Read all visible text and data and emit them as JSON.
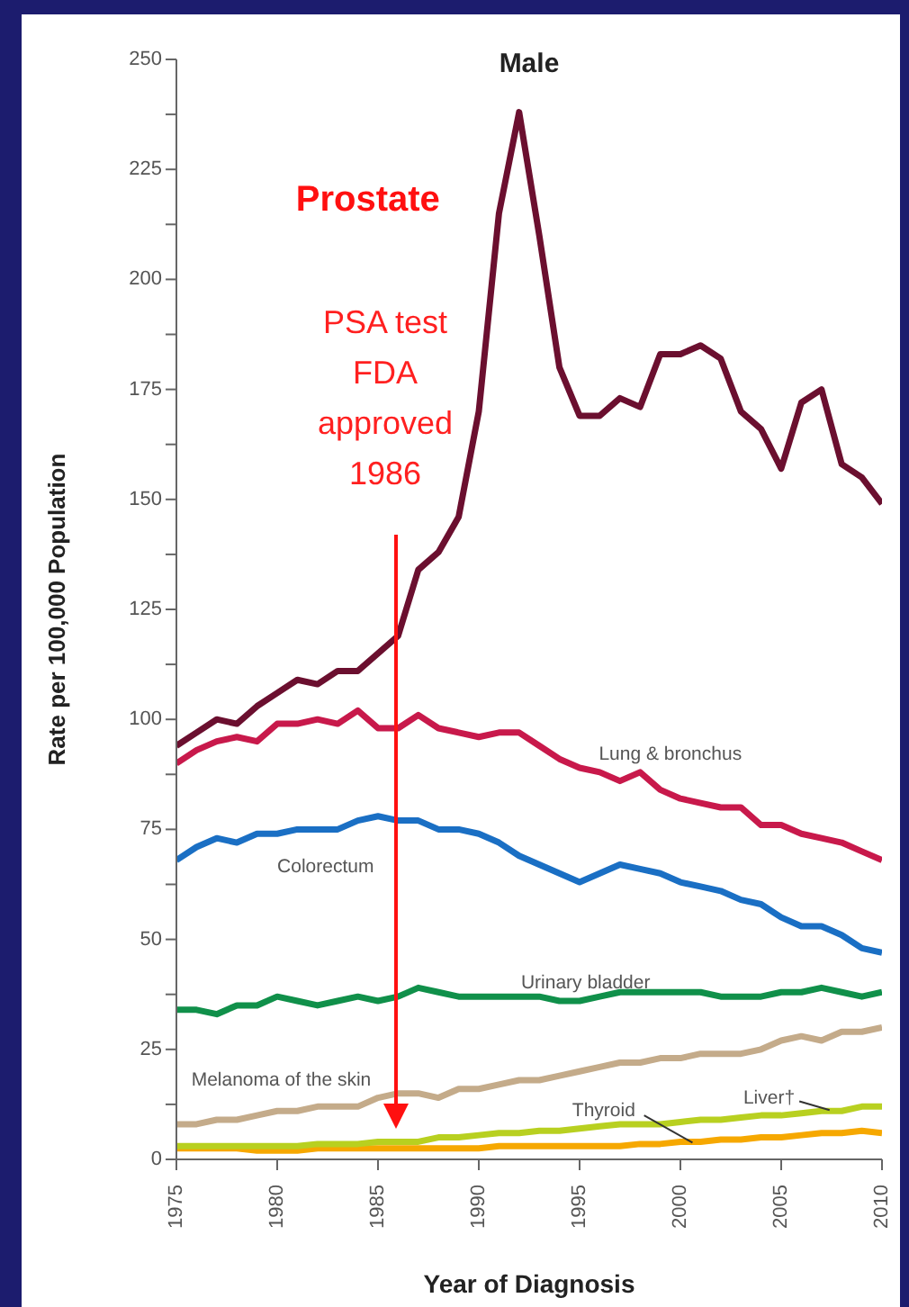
{
  "chart_data": {
    "type": "line",
    "title": "Male",
    "xlabel": "Year of Diagnosis",
    "ylabel": "Rate per 100,000 Population",
    "x": [
      1975,
      1976,
      1977,
      1978,
      1979,
      1980,
      1981,
      1982,
      1983,
      1984,
      1985,
      1986,
      1987,
      1988,
      1989,
      1990,
      1991,
      1992,
      1993,
      1994,
      1995,
      1996,
      1997,
      1998,
      1999,
      2000,
      2001,
      2002,
      2003,
      2004,
      2005,
      2006,
      2007,
      2008,
      2009,
      2010
    ],
    "series": [
      {
        "name": "Prostate",
        "color": "#6b0f2f",
        "values": [
          94,
          97,
          100,
          99,
          103,
          106,
          109,
          108,
          111,
          111,
          115,
          119,
          134,
          138,
          146,
          170,
          215,
          238,
          210,
          180,
          169,
          169,
          173,
          171,
          183,
          183,
          185,
          182,
          170,
          166,
          157,
          172,
          175,
          158,
          155,
          149
        ]
      },
      {
        "name": "Lung & bronchus",
        "color": "#c8194b",
        "values": [
          90,
          93,
          95,
          96,
          95,
          99,
          99,
          100,
          99,
          102,
          98,
          98,
          101,
          98,
          97,
          96,
          97,
          97,
          94,
          91,
          89,
          88,
          86,
          88,
          84,
          82,
          81,
          80,
          80,
          76,
          76,
          74,
          73,
          72,
          70,
          68
        ]
      },
      {
        "name": "Colorectum",
        "color": "#1a6fc4",
        "values": [
          68,
          71,
          73,
          72,
          74,
          74,
          75,
          75,
          75,
          77,
          78,
          77,
          77,
          75,
          75,
          74,
          72,
          69,
          67,
          65,
          63,
          65,
          67,
          66,
          65,
          63,
          62,
          61,
          59,
          58,
          55,
          53,
          53,
          51,
          48,
          47
        ]
      },
      {
        "name": "Urinary bladder",
        "color": "#10904a",
        "values": [
          34,
          34,
          33,
          35,
          35,
          37,
          36,
          35,
          36,
          37,
          36,
          37,
          39,
          38,
          37,
          37,
          37,
          37,
          37,
          36,
          36,
          37,
          38,
          38,
          38,
          38,
          38,
          37,
          37,
          37,
          38,
          38,
          39,
          38,
          37,
          38
        ]
      },
      {
        "name": "Melanoma of the skin",
        "color": "#c4ab8a",
        "values": [
          8,
          8,
          9,
          9,
          10,
          11,
          11,
          12,
          12,
          12,
          14,
          15,
          15,
          14,
          16,
          16,
          17,
          18,
          18,
          19,
          20,
          21,
          22,
          22,
          23,
          23,
          24,
          24,
          24,
          25,
          27,
          28,
          27,
          29,
          29,
          30
        ]
      },
      {
        "name": "Thyroid",
        "color": "#f6a800",
        "values": [
          2.5,
          2.5,
          2.5,
          2.5,
          2,
          2,
          2,
          2.5,
          2.5,
          2.5,
          2.5,
          2.5,
          2.5,
          2.5,
          2.5,
          2.5,
          3,
          3,
          3,
          3,
          3,
          3,
          3,
          3.5,
          3.5,
          4,
          4,
          4.5,
          4.5,
          5,
          5,
          5.5,
          6,
          6,
          6.5,
          6
        ]
      },
      {
        "name": "Liver†",
        "color": "#b8d020",
        "values": [
          3,
          3,
          3,
          3,
          3,
          3,
          3,
          3.5,
          3.5,
          3.5,
          4,
          4,
          4,
          5,
          5,
          5.5,
          6,
          6,
          6.5,
          6.5,
          7,
          7.5,
          8,
          8,
          8,
          8.5,
          9,
          9,
          9.5,
          10,
          10,
          10.5,
          11,
          11,
          12,
          12
        ]
      }
    ],
    "xlim": [
      1975,
      2010
    ],
    "xticks": [
      1975,
      1980,
      1985,
      1990,
      1995,
      2000,
      2005,
      2010
    ],
    "ylim": [
      0,
      250
    ],
    "yticks": [
      0,
      {
        "value": 12.5,
        "label": null
      },
      25,
      {
        "value": 37.5,
        "label": null
      },
      50,
      {
        "value": 62.5,
        "label": null
      },
      75,
      {
        "value": 87.5,
        "label": null
      },
      100,
      {
        "value": 112.5,
        "label": null
      },
      125,
      {
        "value": 137.5,
        "label": null
      },
      150,
      {
        "value": 162.5,
        "label": null
      },
      175,
      {
        "value": 187.5,
        "label": null
      },
      200,
      {
        "value": 212.5,
        "label": null
      },
      225,
      {
        "value": 237.5,
        "label": null
      },
      250
    ],
    "annotations": [
      "PSA test\nFDA\napproved\n1986"
    ]
  }
}
